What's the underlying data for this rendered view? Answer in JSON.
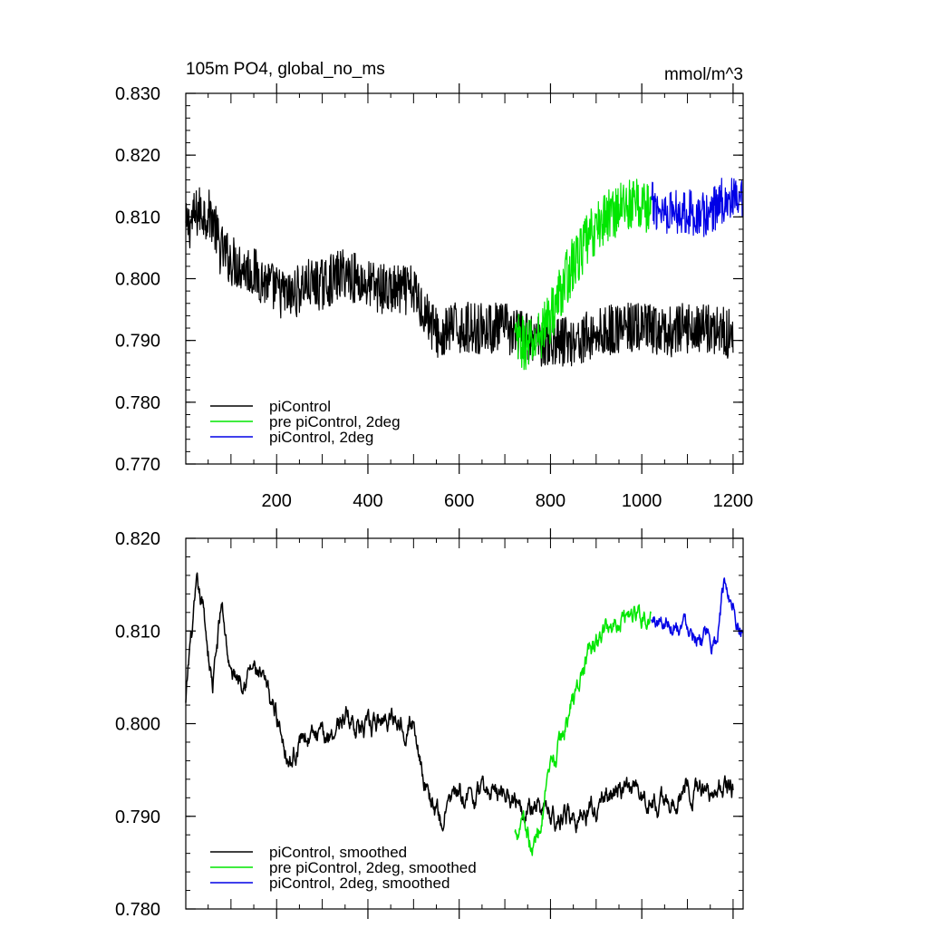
{
  "chart_data": [
    {
      "type": "line",
      "title": "105m PO4, global_no_ms",
      "units": "mmol/m^3",
      "xlim": [
        1,
        1222
      ],
      "ylim": [
        0.77,
        0.83
      ],
      "xticks": [
        200,
        400,
        600,
        800,
        1000,
        1200
      ],
      "xtick_labels": [
        "200",
        "400",
        "600",
        "800",
        "1000",
        "1200"
      ],
      "yticks": [
        0.77,
        0.78,
        0.79,
        0.8,
        0.81,
        0.82,
        0.83
      ],
      "ytick_labels": [
        "0.770",
        "0.780",
        "0.790",
        "0.800",
        "0.810",
        "0.820",
        "0.830"
      ],
      "legend_position": "bottom-left",
      "grid": false,
      "series": [
        {
          "name": "piControl",
          "color": "#000000",
          "x_range": [
            1,
            1200
          ],
          "amplitude": 0.0042,
          "anchors": [
            [
              1,
              0.808
            ],
            [
              30,
              0.811
            ],
            [
              60,
              0.81
            ],
            [
              75,
              0.805
            ],
            [
              100,
              0.803
            ],
            [
              150,
              0.801
            ],
            [
              200,
              0.798
            ],
            [
              230,
              0.797
            ],
            [
              260,
              0.799
            ],
            [
              300,
              0.799
            ],
            [
              350,
              0.801
            ],
            [
              400,
              0.799
            ],
            [
              450,
              0.798
            ],
            [
              500,
              0.798
            ],
            [
              530,
              0.794
            ],
            [
              560,
              0.79
            ],
            [
              580,
              0.792
            ],
            [
              620,
              0.792
            ],
            [
              700,
              0.792
            ],
            [
              760,
              0.79
            ],
            [
              800,
              0.79
            ],
            [
              860,
              0.79
            ],
            [
              900,
              0.791
            ],
            [
              950,
              0.792
            ],
            [
              1000,
              0.792
            ],
            [
              1050,
              0.791
            ],
            [
              1100,
              0.792
            ],
            [
              1150,
              0.792
            ],
            [
              1200,
              0.791
            ]
          ]
        },
        {
          "name": "pre piControl, 2deg",
          "color": "#00e600",
          "x_range": [
            722,
            1020
          ],
          "amplitude": 0.0045,
          "anchors": [
            [
              722,
              0.79
            ],
            [
              760,
              0.789
            ],
            [
              800,
              0.794
            ],
            [
              840,
              0.801
            ],
            [
              880,
              0.806
            ],
            [
              920,
              0.81
            ],
            [
              960,
              0.812
            ],
            [
              1000,
              0.812
            ],
            [
              1020,
              0.811
            ]
          ]
        },
        {
          "name": "piControl, 2deg",
          "color": "#0000e6",
          "x_range": [
            1021,
            1220
          ],
          "amplitude": 0.0038,
          "anchors": [
            [
              1021,
              0.812
            ],
            [
              1060,
              0.811
            ],
            [
              1100,
              0.811
            ],
            [
              1140,
              0.81
            ],
            [
              1180,
              0.813
            ],
            [
              1220,
              0.812
            ]
          ]
        }
      ]
    },
    {
      "type": "line",
      "xlim": [
        1,
        1222
      ],
      "ylim": [
        0.78,
        0.82
      ],
      "yticks": [
        0.78,
        0.79,
        0.8,
        0.81,
        0.82
      ],
      "ytick_labels": [
        "0.780",
        "0.790",
        "0.800",
        "0.810",
        "0.820"
      ],
      "legend_position": "bottom-left",
      "grid": false,
      "series": [
        {
          "name": "piControl, smoothed",
          "color": "#000000",
          "x_range": [
            1,
            1200
          ],
          "amplitude": 0.0022,
          "anchors": [
            [
              1,
              0.802
            ],
            [
              10,
              0.808
            ],
            [
              25,
              0.814
            ],
            [
              40,
              0.812
            ],
            [
              60,
              0.804
            ],
            [
              80,
              0.813
            ],
            [
              100,
              0.805
            ],
            [
              150,
              0.806
            ],
            [
              200,
              0.801
            ],
            [
              230,
              0.796
            ],
            [
              260,
              0.799
            ],
            [
              300,
              0.798
            ],
            [
              350,
              0.801
            ],
            [
              400,
              0.799
            ],
            [
              450,
              0.801
            ],
            [
              500,
              0.8
            ],
            [
              530,
              0.793
            ],
            [
              560,
              0.789
            ],
            [
              580,
              0.792
            ],
            [
              620,
              0.792
            ],
            [
              700,
              0.793
            ],
            [
              760,
              0.791
            ],
            [
              800,
              0.79
            ],
            [
              860,
              0.79
            ],
            [
              900,
              0.791
            ],
            [
              950,
              0.793
            ],
            [
              1000,
              0.792
            ],
            [
              1050,
              0.791
            ],
            [
              1100,
              0.793
            ],
            [
              1150,
              0.793
            ],
            [
              1200,
              0.793
            ]
          ]
        },
        {
          "name": "pre piControl, 2deg, smoothed",
          "color": "#00e600",
          "x_range": [
            722,
            1020
          ],
          "amplitude": 0.0022,
          "anchors": [
            [
              722,
              0.788
            ],
            [
              740,
              0.791
            ],
            [
              760,
              0.786
            ],
            [
              800,
              0.794
            ],
            [
              840,
              0.801
            ],
            [
              880,
              0.807
            ],
            [
              920,
              0.81
            ],
            [
              960,
              0.812
            ],
            [
              1000,
              0.812
            ],
            [
              1020,
              0.811
            ]
          ]
        },
        {
          "name": "piControl, 2deg, smoothed",
          "color": "#0000e6",
          "x_range": [
            1021,
            1220
          ],
          "amplitude": 0.0018,
          "anchors": [
            [
              1021,
              0.811
            ],
            [
              1060,
              0.811
            ],
            [
              1100,
              0.811
            ],
            [
              1140,
              0.809
            ],
            [
              1160,
              0.808
            ],
            [
              1180,
              0.815
            ],
            [
              1200,
              0.813
            ],
            [
              1220,
              0.81
            ]
          ]
        }
      ]
    }
  ]
}
